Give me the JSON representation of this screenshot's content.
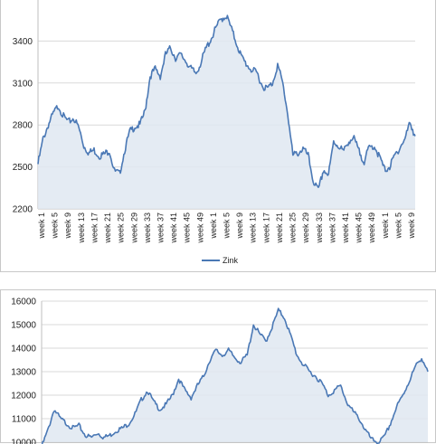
{
  "chart_data": [
    {
      "type": "area",
      "series": [
        {
          "name": "Zink",
          "values": [
            2520,
            2700,
            2800,
            2880,
            2940,
            2860,
            2820,
            2850,
            2780,
            2650,
            2600,
            2620,
            2580,
            2590,
            2620,
            2470,
            2450,
            2620,
            2750,
            2790,
            2800,
            2900,
            3150,
            3200,
            3150,
            3300,
            3350,
            3280,
            3300,
            3260,
            3200,
            3170,
            3250,
            3350,
            3420,
            3500,
            3560,
            3580,
            3480,
            3380,
            3280,
            3230,
            3190,
            3170,
            3080,
            3060,
            3100,
            3230,
            3100,
            2880,
            2580,
            2600,
            2630,
            2580,
            2400,
            2330,
            2480,
            2440,
            2680,
            2650,
            2610,
            2690,
            2700,
            2610,
            2540,
            2640,
            2650,
            2570,
            2480,
            2500,
            2580,
            2640,
            2700,
            2820,
            2720
          ]
        }
      ],
      "x_tick_labels": [
        "week 1",
        "week 5",
        "week 9",
        "week 13",
        "week 17",
        "week 21",
        "week 25",
        "week 29",
        "week 33",
        "week 37",
        "week 41",
        "week 45",
        "week 49",
        "week 1",
        "week 5",
        "week 9",
        "week 13",
        "week 17",
        "week 21",
        "week 25",
        "week 29",
        "week 33",
        "week 37",
        "week 41",
        "week 45",
        "week 49",
        "week 1",
        "week 5",
        "week 9"
      ],
      "y_ticks": [
        "2200",
        "2500",
        "2800",
        "3100",
        "3400"
      ],
      "ylim": [
        2200,
        3700
      ],
      "grid": true,
      "legend": "bottom",
      "colors": {
        "line": "#4a78b5",
        "fill": "#dfe7f1",
        "grid": "#d9d9d9"
      }
    },
    {
      "type": "area",
      "series": [
        {
          "values": [
            9800,
            10500,
            11400,
            11000,
            10800,
            10600,
            10700,
            10300,
            10200,
            10400,
            10200,
            10300,
            10500,
            10600,
            10800,
            11200,
            11800,
            12200,
            11700,
            11400,
            11600,
            12000,
            12700,
            12200,
            11900,
            12400,
            12800,
            13500,
            13900,
            13700,
            13900,
            13600,
            13400,
            13700,
            15000,
            14600,
            14300,
            14900,
            15600,
            15300,
            14500,
            13700,
            13300,
            13000,
            12800,
            12500,
            12000,
            12200,
            12400,
            11700,
            11300,
            11000,
            10500,
            10100,
            10000,
            10200,
            10800,
            11500,
            12000,
            12600,
            13200,
            13600,
            13000
          ]
        }
      ],
      "y_ticks": [
        "10000",
        "11000",
        "12000",
        "13000",
        "14000",
        "15000",
        "16000"
      ],
      "ylim": [
        10000,
        16000
      ],
      "grid": true,
      "colors": {
        "line": "#4a78b5",
        "fill": "#dfe7f1",
        "grid": "#d9d9d9"
      }
    }
  ]
}
